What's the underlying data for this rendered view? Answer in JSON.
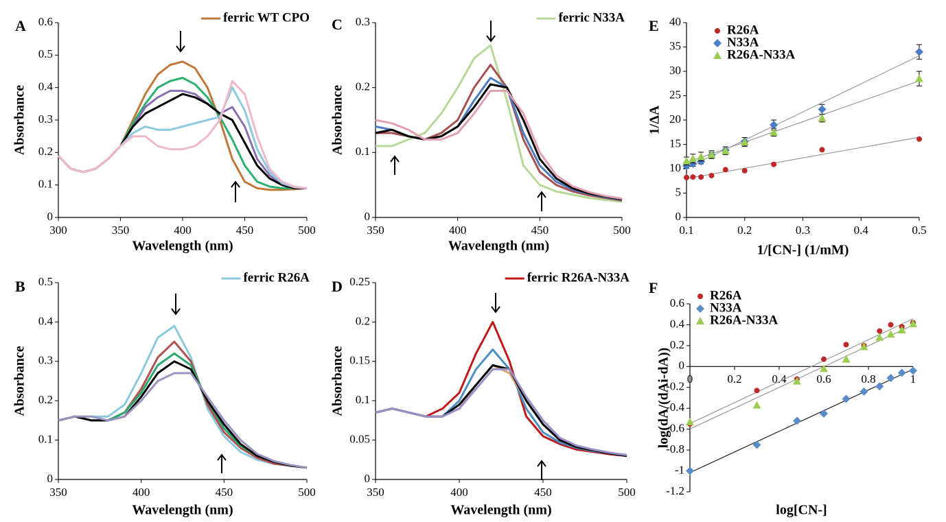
{
  "chart_data": [
    {
      "type": "line",
      "panel": "A",
      "x_label": "Wavelength (nm)",
      "y_label": "Absorbance",
      "legend": "top right",
      "x": [
        300,
        310,
        320,
        330,
        340,
        350,
        360,
        370,
        380,
        390,
        400,
        410,
        420,
        430,
        440,
        450,
        460,
        470,
        480,
        490,
        500
      ],
      "xlim": [
        300,
        500
      ],
      "xticks": [
        300,
        350,
        400,
        450,
        500
      ],
      "ylim": [
        0,
        0.6
      ],
      "yticks": [
        0,
        0.1,
        0.2,
        0.3,
        0.4,
        0.5,
        0.6
      ],
      "series": [
        {
          "name": "ferric WT CPO",
          "color": "#c0783a",
          "values": [
            0.19,
            0.15,
            0.14,
            0.15,
            0.18,
            0.22,
            0.3,
            0.38,
            0.44,
            0.47,
            0.48,
            0.46,
            0.4,
            0.3,
            0.18,
            0.11,
            0.09,
            0.085,
            0.085,
            0.087,
            0.09
          ]
        },
        {
          "color": "#2ab070",
          "values": [
            0.19,
            0.15,
            0.14,
            0.15,
            0.18,
            0.22,
            0.29,
            0.35,
            0.4,
            0.42,
            0.43,
            0.41,
            0.37,
            0.31,
            0.24,
            0.16,
            0.11,
            0.095,
            0.09,
            0.09,
            0.09
          ]
        },
        {
          "color": "#8a6fb0",
          "values": [
            0.19,
            0.15,
            0.14,
            0.15,
            0.18,
            0.22,
            0.28,
            0.34,
            0.37,
            0.39,
            0.39,
            0.38,
            0.35,
            0.32,
            0.34,
            0.28,
            0.18,
            0.13,
            0.1,
            0.09,
            0.09
          ]
        },
        {
          "color": "#000000",
          "values": [
            0.19,
            0.15,
            0.14,
            0.15,
            0.18,
            0.22,
            0.28,
            0.32,
            0.34,
            0.36,
            0.38,
            0.37,
            0.35,
            0.32,
            0.3,
            0.23,
            0.16,
            0.12,
            0.1,
            0.09,
            0.09
          ]
        },
        {
          "color": "#8cc8e0",
          "values": [
            0.19,
            0.15,
            0.14,
            0.15,
            0.18,
            0.22,
            0.26,
            0.28,
            0.27,
            0.27,
            0.28,
            0.29,
            0.3,
            0.31,
            0.4,
            0.33,
            0.21,
            0.14,
            0.105,
            0.093,
            0.09
          ]
        },
        {
          "color": "#f0b8c8",
          "values": [
            0.19,
            0.15,
            0.14,
            0.15,
            0.18,
            0.22,
            0.25,
            0.25,
            0.22,
            0.21,
            0.21,
            0.22,
            0.25,
            0.3,
            0.42,
            0.38,
            0.25,
            0.15,
            0.11,
            0.095,
            0.09
          ]
        }
      ]
    },
    {
      "type": "line",
      "panel": "B",
      "x_label": "Wavelength (nm)",
      "y_label": "Absorbance",
      "legend": "top right",
      "x": [
        350,
        360,
        370,
        380,
        390,
        400,
        410,
        420,
        430,
        440,
        450,
        460,
        470,
        480,
        490,
        500
      ],
      "xlim": [
        350,
        500
      ],
      "xticks": [
        350,
        400,
        450,
        500
      ],
      "ylim": [
        0,
        0.5
      ],
      "yticks": [
        0,
        0.1,
        0.2,
        0.3,
        0.4,
        0.5
      ],
      "series": [
        {
          "name": "ferric R26A",
          "color": "#8cc8dc",
          "values": [
            0.15,
            0.16,
            0.16,
            0.16,
            0.19,
            0.27,
            0.36,
            0.39,
            0.31,
            0.18,
            0.11,
            0.07,
            0.05,
            0.04,
            0.035,
            0.03
          ]
        },
        {
          "color": "#b05050",
          "values": [
            0.15,
            0.16,
            0.15,
            0.15,
            0.17,
            0.23,
            0.31,
            0.35,
            0.3,
            0.19,
            0.12,
            0.08,
            0.055,
            0.04,
            0.035,
            0.03
          ]
        },
        {
          "color": "#2aa870",
          "values": [
            0.15,
            0.16,
            0.15,
            0.15,
            0.17,
            0.22,
            0.29,
            0.32,
            0.29,
            0.2,
            0.13,
            0.085,
            0.06,
            0.045,
            0.035,
            0.03
          ]
        },
        {
          "color": "#000000",
          "values": [
            0.15,
            0.16,
            0.15,
            0.15,
            0.16,
            0.21,
            0.27,
            0.3,
            0.28,
            0.2,
            0.14,
            0.09,
            0.06,
            0.045,
            0.035,
            0.03
          ]
        },
        {
          "color": "#9a94c0",
          "values": [
            0.15,
            0.16,
            0.16,
            0.15,
            0.16,
            0.2,
            0.25,
            0.27,
            0.27,
            0.21,
            0.15,
            0.1,
            0.065,
            0.047,
            0.037,
            0.03
          ]
        }
      ]
    },
    {
      "type": "line",
      "panel": "C",
      "x_label": "Wavelength (nm)",
      "y_label": "Absorbance",
      "legend": "top right",
      "x": [
        350,
        360,
        370,
        380,
        390,
        400,
        410,
        420,
        430,
        440,
        450,
        460,
        470,
        480,
        490,
        500
      ],
      "xlim": [
        350,
        500
      ],
      "xticks": [
        350,
        400,
        450,
        500
      ],
      "ylim": [
        0,
        0.3
      ],
      "yticks": [
        0,
        0.1,
        0.2,
        0.3
      ],
      "series": [
        {
          "name": "ferric N33A",
          "color": "#b8d898",
          "values": [
            0.11,
            0.11,
            0.12,
            0.13,
            0.16,
            0.2,
            0.245,
            0.265,
            0.18,
            0.08,
            0.05,
            0.04,
            0.035,
            0.03,
            0.027,
            0.024
          ]
        },
        {
          "color": "#a85050",
          "values": [
            0.13,
            0.13,
            0.125,
            0.12,
            0.13,
            0.15,
            0.2,
            0.235,
            0.2,
            0.12,
            0.07,
            0.05,
            0.04,
            0.034,
            0.03,
            0.026
          ]
        },
        {
          "color": "#4a7ac0",
          "values": [
            0.14,
            0.135,
            0.125,
            0.12,
            0.125,
            0.14,
            0.18,
            0.215,
            0.2,
            0.13,
            0.08,
            0.055,
            0.043,
            0.036,
            0.031,
            0.027
          ]
        },
        {
          "color": "#000000",
          "values": [
            0.13,
            0.135,
            0.125,
            0.12,
            0.125,
            0.14,
            0.17,
            0.205,
            0.2,
            0.15,
            0.09,
            0.06,
            0.045,
            0.037,
            0.032,
            0.028
          ]
        },
        {
          "color": "#e0a0b0",
          "values": [
            0.15,
            0.145,
            0.135,
            0.12,
            0.12,
            0.13,
            0.16,
            0.195,
            0.195,
            0.16,
            0.1,
            0.065,
            0.048,
            0.039,
            0.033,
            0.029
          ]
        }
      ]
    },
    {
      "type": "line",
      "panel": "D",
      "x_label": "Wavelength (nm)",
      "y_label": "Absorbance",
      "legend": "top right",
      "x": [
        350,
        360,
        370,
        380,
        390,
        400,
        410,
        420,
        430,
        440,
        450,
        460,
        470,
        480,
        490,
        500
      ],
      "xlim": [
        350,
        500
      ],
      "xticks": [
        350,
        400,
        450,
        500
      ],
      "ylim": [
        0,
        0.25
      ],
      "yticks": [
        0,
        0.05,
        0.1,
        0.15,
        0.2,
        0.25
      ],
      "series": [
        {
          "name": "ferric R26A-N33A",
          "color": "#c01818",
          "values": [
            0.085,
            0.09,
            0.085,
            0.08,
            0.09,
            0.11,
            0.16,
            0.2,
            0.15,
            0.08,
            0.055,
            0.045,
            0.038,
            0.035,
            0.032,
            0.03
          ]
        },
        {
          "color": "#4a90c0",
          "values": [
            0.085,
            0.09,
            0.085,
            0.08,
            0.08,
            0.1,
            0.14,
            0.165,
            0.14,
            0.09,
            0.06,
            0.047,
            0.04,
            0.036,
            0.033,
            0.03
          ]
        },
        {
          "color": "#e0a070",
          "values": [
            0.085,
            0.09,
            0.085,
            0.08,
            0.08,
            0.09,
            0.12,
            0.145,
            0.135,
            0.1,
            0.07,
            0.05,
            0.041,
            0.037,
            0.033,
            0.03
          ]
        },
        {
          "color": "#000000",
          "values": [
            0.085,
            0.09,
            0.085,
            0.08,
            0.08,
            0.095,
            0.12,
            0.145,
            0.14,
            0.1,
            0.07,
            0.05,
            0.041,
            0.037,
            0.033,
            0.03
          ]
        },
        {
          "color": "#9a90c8",
          "values": [
            0.085,
            0.09,
            0.085,
            0.08,
            0.08,
            0.09,
            0.115,
            0.14,
            0.14,
            0.105,
            0.075,
            0.053,
            0.043,
            0.038,
            0.034,
            0.031
          ]
        }
      ]
    },
    {
      "type": "scatter",
      "panel": "E",
      "x_label": "1/[CN-] (1/mM)",
      "y_label": "1/ΔA",
      "legend": "top left",
      "trendline": true,
      "x": [
        0.1,
        0.111,
        0.125,
        0.143,
        0.167,
        0.2,
        0.25,
        0.333,
        0.5
      ],
      "xlim": [
        0.1,
        0.5
      ],
      "xticks": [
        0.1,
        0.2,
        0.3,
        0.4,
        0.5
      ],
      "ylim": [
        0,
        40
      ],
      "yticks": [
        0,
        5,
        10,
        15,
        20,
        25,
        30,
        35,
        40
      ],
      "series": [
        {
          "name": "R26A",
          "color": "#c02828",
          "marker": "circle",
          "trend_color": "#999999",
          "values": [
            8.2,
            8.3,
            8.3,
            8.6,
            9.8,
            9.6,
            10.9,
            13.9,
            16.1
          ]
        },
        {
          "name": "N33A",
          "color": "#4a7cc8",
          "marker": "diamond",
          "trend_color": "#999999",
          "values": [
            10.6,
            11.0,
            11.5,
            12.8,
            13.8,
            15.6,
            19.0,
            22.2,
            34.0
          ],
          "errors": [
            0.5,
            0.5,
            0.5,
            0.6,
            0.7,
            0.8,
            1,
            1,
            1.5
          ]
        },
        {
          "name": "R26A-N33A",
          "color": "#9acd50",
          "marker": "triangle",
          "trend_color": "#999999",
          "values": [
            11.6,
            12.1,
            12.5,
            12.9,
            13.7,
            15.5,
            17.5,
            20.4,
            28.5
          ],
          "errors": [
            0.8,
            0.9,
            0.9,
            0.8,
            0.8,
            0.9,
            0.8,
            0.8,
            1.5
          ]
        }
      ]
    },
    {
      "type": "scatter",
      "panel": "F",
      "x_label": "log[CN-]",
      "y_label": "log(dA/(dAi-dA))",
      "legend": "top left",
      "trendline": true,
      "x": [
        0,
        0.3,
        0.48,
        0.6,
        0.7,
        0.78,
        0.85,
        0.9,
        0.95,
        1.0
      ],
      "xlim": [
        0,
        1
      ],
      "xticks": [
        0,
        0.2,
        0.4,
        0.6,
        0.8,
        1
      ],
      "ylim": [
        -1.2,
        0.6
      ],
      "yticks": [
        -1.2,
        -1,
        -0.8,
        -0.6,
        -0.4,
        -0.2,
        0,
        0.2,
        0.4,
        0.6
      ],
      "series": [
        {
          "name": "R26A",
          "color": "#c02828",
          "marker": "circle",
          "trend_color": "#999999",
          "values": [
            -0.55,
            -0.23,
            -0.12,
            0.07,
            0.21,
            0.2,
            0.34,
            0.4,
            0.38,
            0.42
          ]
        },
        {
          "name": "N33A",
          "color": "#5a8cc8",
          "marker": "diamond",
          "trend_color": "#222222",
          "values": [
            -1.0,
            -0.75,
            -0.52,
            -0.45,
            -0.31,
            -0.24,
            -0.19,
            -0.11,
            -0.06,
            -0.04
          ]
        },
        {
          "name": "R26A-N33A",
          "color": "#9acd50",
          "marker": "triangle",
          "trend_color": "#999999",
          "values": [
            -0.53,
            -0.37,
            -0.14,
            -0.02,
            0.07,
            0.19,
            0.28,
            0.31,
            0.35,
            0.41
          ]
        }
      ]
    }
  ]
}
